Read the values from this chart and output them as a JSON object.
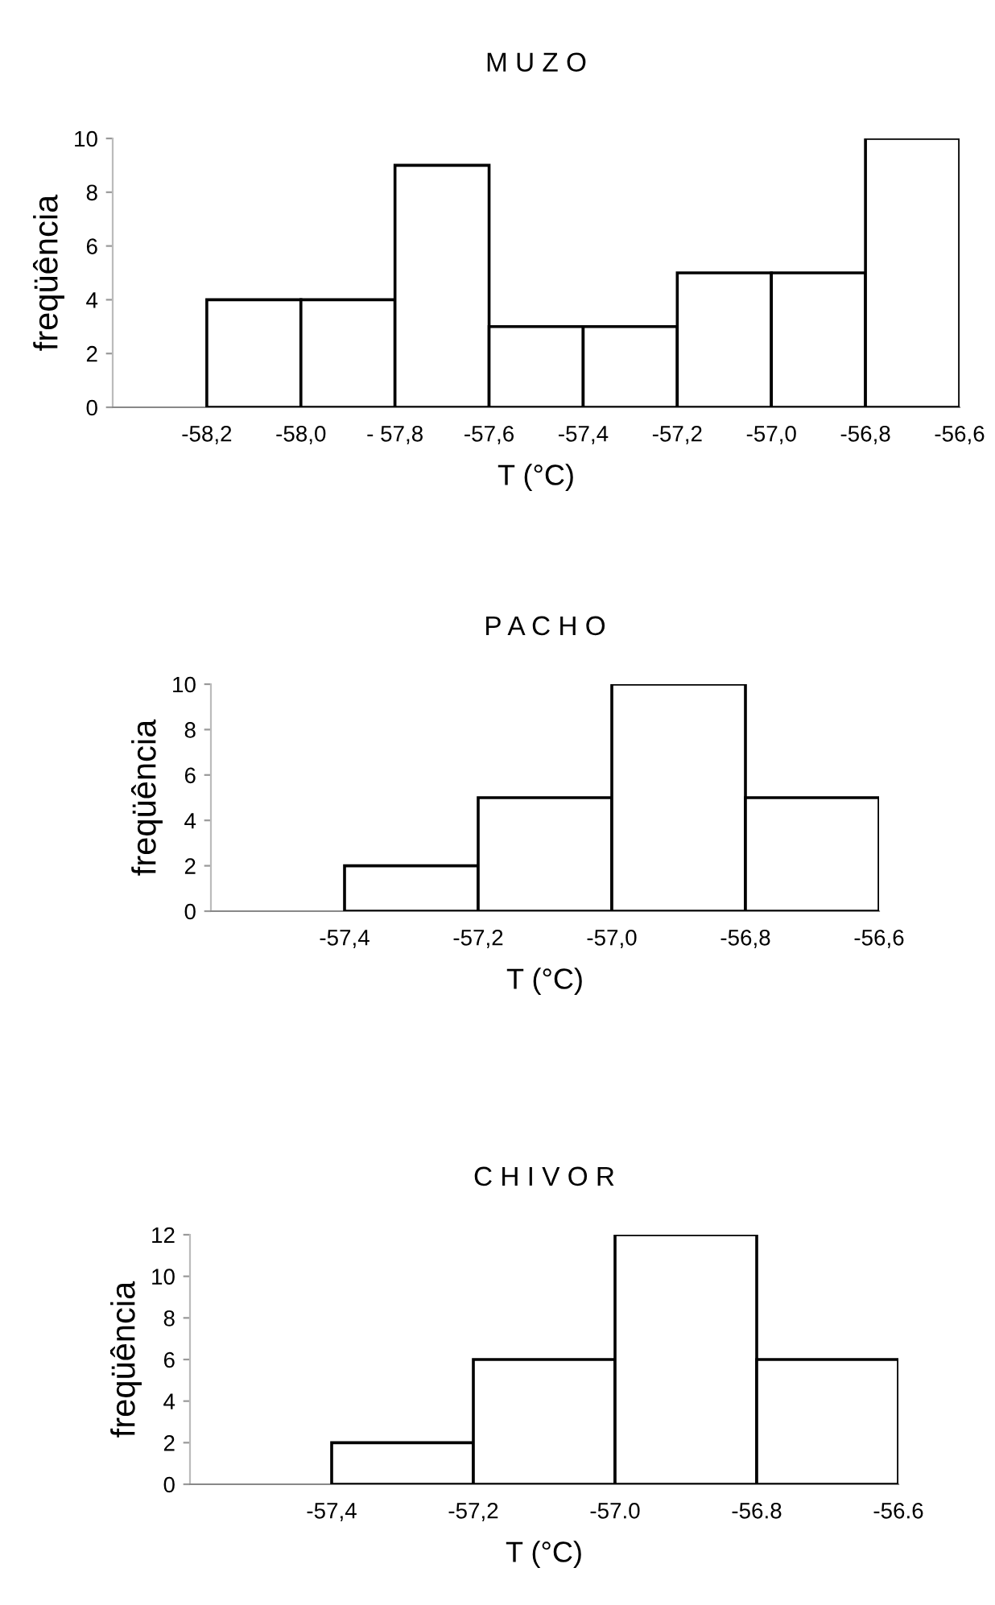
{
  "chart_data": [
    {
      "type": "histogram",
      "title": "M U Z O",
      "xlabel": "T (°C)",
      "ylabel": "freqüência",
      "bins": [
        -58.2,
        -58.0,
        -57.8,
        -57.6,
        -57.4,
        -57.2,
        -57.0,
        -56.8,
        -56.6
      ],
      "values": [
        4,
        4,
        9,
        3,
        3,
        5,
        5,
        10
      ],
      "color": "#ffffff",
      "xlim": [
        -58.4,
        -56.6
      ],
      "ylim": [
        0,
        10
      ],
      "xticks": [
        {
          "value": -58.2,
          "label": "-58,2"
        },
        {
          "value": -58.0,
          "label": "-58,0"
        },
        {
          "value": -57.8,
          "label": "- 57,8"
        },
        {
          "value": -57.6,
          "label": "-57,6"
        },
        {
          "value": -57.4,
          "label": "-57,4"
        },
        {
          "value": -57.2,
          "label": "-57,2"
        },
        {
          "value": -57.0,
          "label": "-57,0"
        },
        {
          "value": -56.8,
          "label": "-56,8"
        },
        {
          "value": -56.6,
          "label": "-56,6"
        }
      ],
      "yticks": [
        0,
        2,
        4,
        6,
        8,
        10
      ],
      "grid": false,
      "legend": false
    },
    {
      "type": "histogram",
      "title": "P A C H O",
      "xlabel": "T (°C)",
      "ylabel": "freqüência",
      "bins": [
        -57.4,
        -57.2,
        -57.0,
        -56.8,
        -56.6
      ],
      "values": [
        2,
        5,
        10,
        5
      ],
      "color": "#ffffff",
      "xlim": [
        -57.6,
        -56.6
      ],
      "ylim": [
        0,
        10
      ],
      "xticks": [
        {
          "value": -57.4,
          "label": "-57,4"
        },
        {
          "value": -57.2,
          "label": "-57,2"
        },
        {
          "value": -57.0,
          "label": "-57,0"
        },
        {
          "value": -56.8,
          "label": "-56,8"
        },
        {
          "value": -56.6,
          "label": "-56,6"
        }
      ],
      "yticks": [
        0,
        2,
        4,
        6,
        8,
        10
      ],
      "grid": false,
      "legend": false
    },
    {
      "type": "histogram",
      "title": "C H I V O R",
      "xlabel": "T (°C)",
      "ylabel": "freqüência",
      "bins": [
        -57.4,
        -57.2,
        -57.0,
        -56.8,
        -56.6
      ],
      "values": [
        2,
        6,
        12,
        6
      ],
      "color": "#ffffff",
      "xlim": [
        -57.6,
        -56.6
      ],
      "ylim": [
        0,
        12
      ],
      "xticks": [
        {
          "value": -57.4,
          "label": "-57,4"
        },
        {
          "value": -57.2,
          "label": "-57,2"
        },
        {
          "value": -57.0,
          "label": "-57.0"
        },
        {
          "value": -56.8,
          "label": "-56.8"
        },
        {
          "value": -56.6,
          "label": "-56.6"
        }
      ],
      "yticks": [
        0,
        2,
        4,
        6,
        8,
        10,
        12
      ],
      "grid": false,
      "legend": false
    }
  ]
}
